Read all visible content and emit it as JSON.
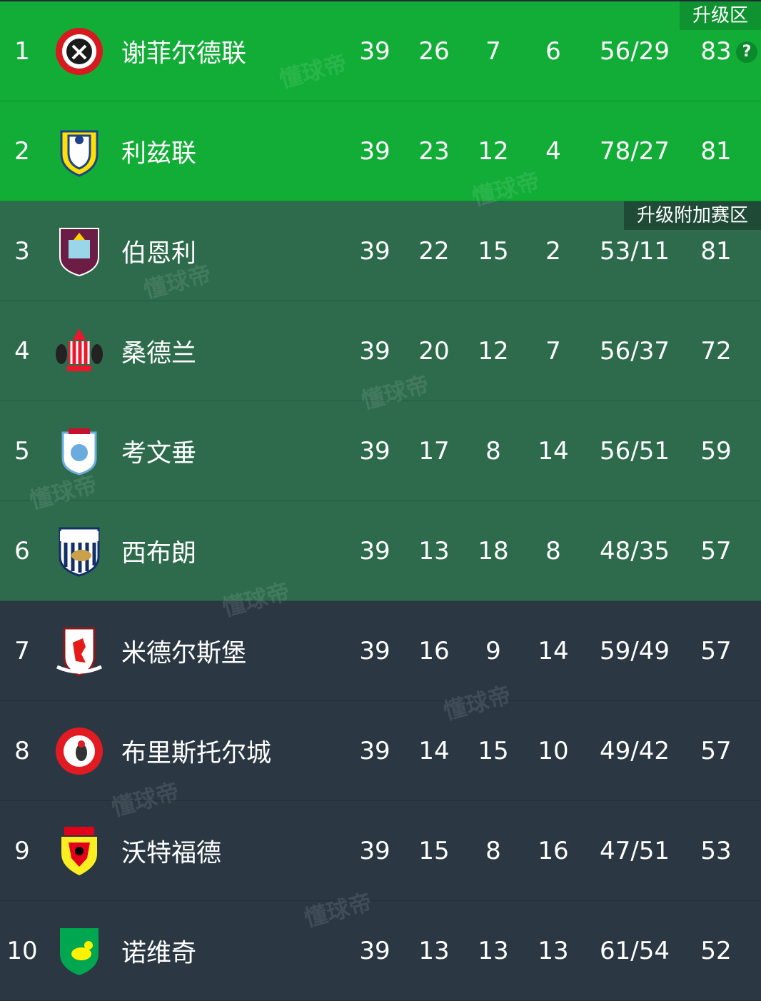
{
  "zones": {
    "promotion": "升级区",
    "playoff": "升级附加赛区"
  },
  "help_icon": "?",
  "watermark": "懂球帝",
  "colors": {
    "promotion": "#12ad37",
    "playoff": "#2d6b4c",
    "normal": "#2b3843"
  },
  "rows": [
    {
      "rank": "1",
      "team": "谢菲尔德联",
      "logo": "sheffield-united-crest",
      "p": "39",
      "w": "26",
      "d": "7",
      "l": "6",
      "goals": "56/29",
      "pts": "83"
    },
    {
      "rank": "2",
      "team": "利兹联",
      "logo": "leeds-united-crest",
      "p": "39",
      "w": "23",
      "d": "12",
      "l": "4",
      "goals": "78/27",
      "pts": "81"
    },
    {
      "rank": "3",
      "team": "伯恩利",
      "logo": "burnley-crest",
      "p": "39",
      "w": "22",
      "d": "15",
      "l": "2",
      "goals": "53/11",
      "pts": "81"
    },
    {
      "rank": "4",
      "team": "桑德兰",
      "logo": "sunderland-crest",
      "p": "39",
      "w": "20",
      "d": "12",
      "l": "7",
      "goals": "56/37",
      "pts": "72"
    },
    {
      "rank": "5",
      "team": "考文垂",
      "logo": "coventry-crest",
      "p": "39",
      "w": "17",
      "d": "8",
      "l": "14",
      "goals": "56/51",
      "pts": "59"
    },
    {
      "rank": "6",
      "team": "西布朗",
      "logo": "west-brom-crest",
      "p": "39",
      "w": "13",
      "d": "18",
      "l": "8",
      "goals": "48/35",
      "pts": "57"
    },
    {
      "rank": "7",
      "team": "米德尔斯堡",
      "logo": "middlesbrough-crest",
      "p": "39",
      "w": "16",
      "d": "9",
      "l": "14",
      "goals": "59/49",
      "pts": "57"
    },
    {
      "rank": "8",
      "team": "布里斯托尔城",
      "logo": "bristol-city-crest",
      "p": "39",
      "w": "14",
      "d": "15",
      "l": "10",
      "goals": "49/42",
      "pts": "57"
    },
    {
      "rank": "9",
      "team": "沃特福德",
      "logo": "watford-crest",
      "p": "39",
      "w": "15",
      "d": "8",
      "l": "16",
      "goals": "47/51",
      "pts": "53"
    },
    {
      "rank": "10",
      "team": "诺维奇",
      "logo": "norwich-crest",
      "p": "39",
      "w": "13",
      "d": "13",
      "l": "13",
      "goals": "61/54",
      "pts": "52"
    }
  ]
}
